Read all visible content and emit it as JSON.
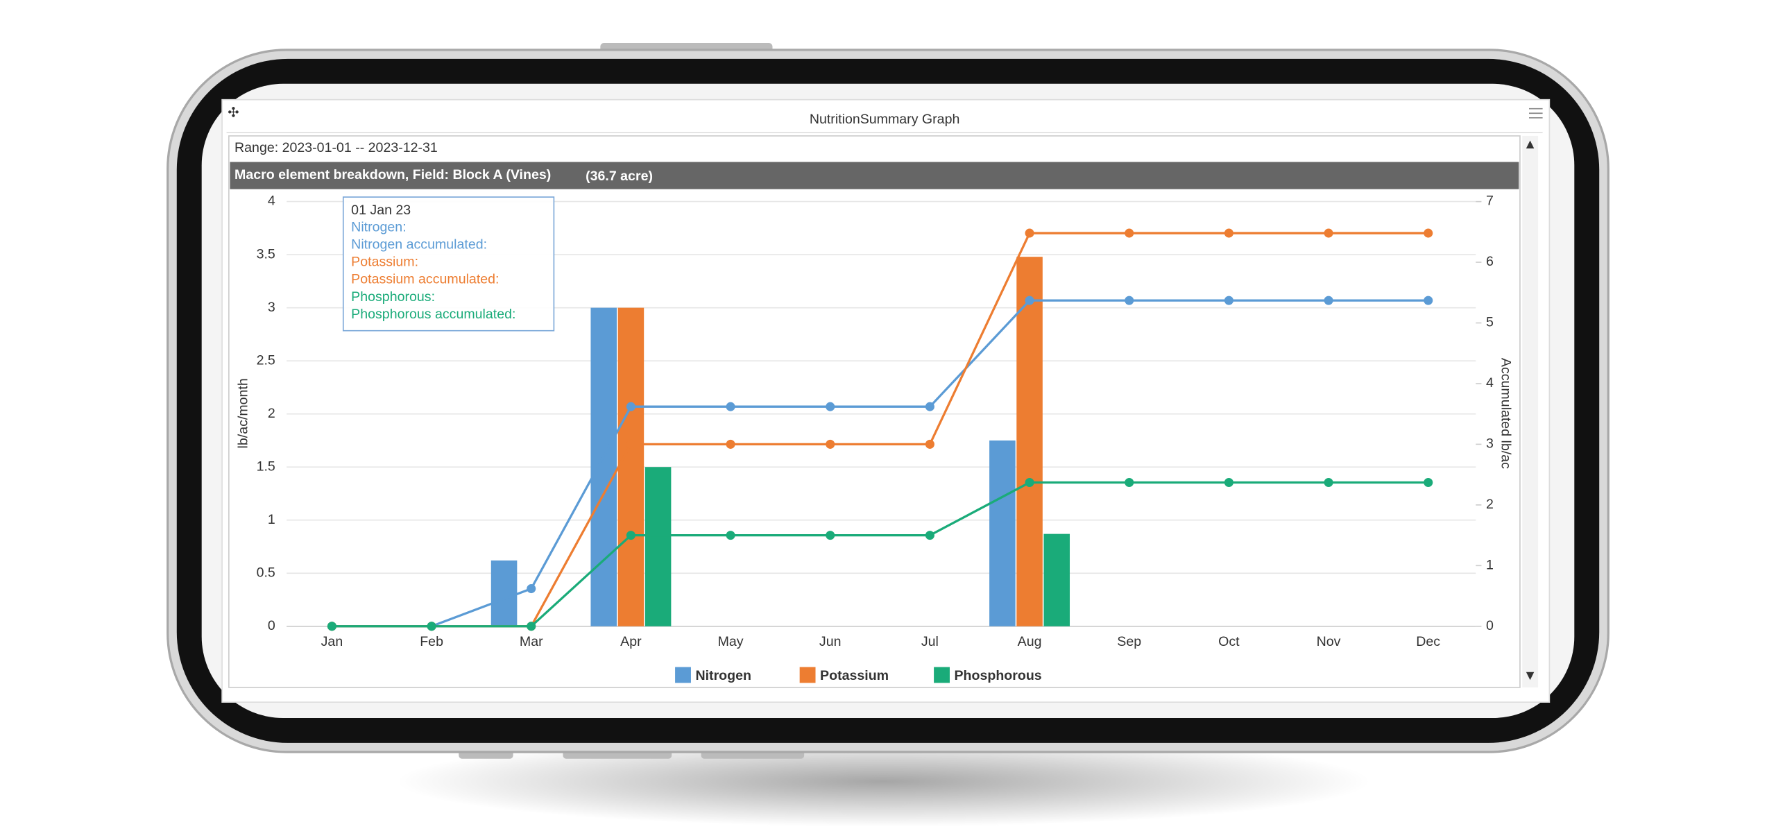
{
  "window": {
    "title": "NutritionSummary Graph",
    "range": "Range: 2023-01-01 -- 2023-12-31",
    "header": "Macro element breakdown, Field: Block A (Vines)",
    "area": "(36.7 acre)"
  },
  "tooltip": {
    "date": "01 Jan 23",
    "rows": [
      "Nitrogen:",
      "Nitrogen accumulated:",
      "Potassium:",
      "Potassium accumulated:",
      "Phosphorous:",
      "Phosphorous accumulated:"
    ]
  },
  "chart_data": {
    "type": "bar",
    "categories": [
      "Jan",
      "Feb",
      "Mar",
      "Apr",
      "May",
      "Jun",
      "Jul",
      "Aug",
      "Sep",
      "Oct",
      "Nov",
      "Dec"
    ],
    "series": [
      {
        "name": "Nitrogen",
        "color": "#5b9bd5",
        "values": [
          0,
          0,
          0.62,
          3,
          0,
          0,
          0,
          1.75,
          0,
          0,
          0,
          0
        ]
      },
      {
        "name": "Potassium",
        "color": "#ed7d31",
        "values": [
          0,
          0,
          0,
          3,
          0,
          0,
          0,
          3.48,
          0,
          0,
          0,
          0
        ]
      },
      {
        "name": "Phosphorous",
        "color": "#1aab79",
        "values": [
          0,
          0,
          0,
          1.5,
          0,
          0,
          0,
          0.87,
          0,
          0,
          0,
          0
        ]
      },
      {
        "type": "line",
        "axis": "y2",
        "color": "#5b9bd5",
        "values": [
          0,
          0,
          0.62,
          3.62,
          3.62,
          3.62,
          3.62,
          5.37,
          5.37,
          5.37,
          5.37,
          5.37
        ]
      },
      {
        "type": "line",
        "axis": "y2",
        "color": "#ed7d31",
        "values": [
          0,
          0,
          0,
          3,
          3,
          3,
          3,
          6.48,
          6.48,
          6.48,
          6.48,
          6.48
        ]
      },
      {
        "type": "line",
        "axis": "y2",
        "color": "#1aab79",
        "values": [
          0,
          0,
          0,
          1.5,
          1.5,
          1.5,
          1.5,
          2.37,
          2.37,
          2.37,
          2.37,
          2.37
        ]
      }
    ],
    "ylabel": "lb/ac/month",
    "y2label": "Accumulated lb/ac",
    "ylim": [
      0,
      4
    ],
    "yticks": [
      0,
      0.5,
      1,
      1.5,
      2,
      2.5,
      3,
      3.5,
      4
    ],
    "y2lim": [
      0,
      7
    ],
    "y2ticks": [
      0,
      1,
      2,
      3,
      4,
      5,
      6,
      7
    ],
    "grid": true,
    "legend": "bottom"
  }
}
